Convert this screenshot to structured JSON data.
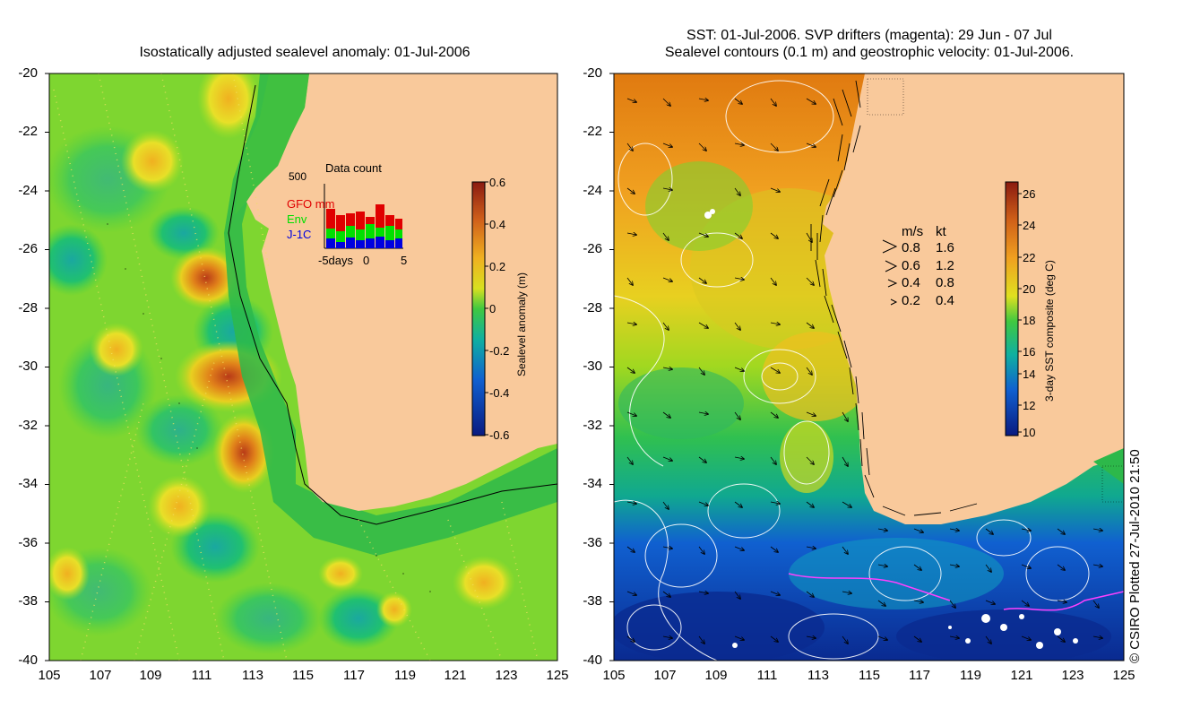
{
  "left_panel": {
    "title": "Isostatically adjusted sealevel anomaly: 01-Jul-2006",
    "y_ticks": [
      "-20",
      "-22",
      "-24",
      "-26",
      "-28",
      "-30",
      "-32",
      "-34",
      "-36",
      "-38",
      "-40"
    ],
    "x_ticks": [
      "105",
      "107",
      "109",
      "111",
      "113",
      "115",
      "117",
      "119",
      "121",
      "123",
      "125"
    ],
    "colorbar": {
      "label": "Sealevel anomaly (m)",
      "ticks": [
        "0.6",
        "0.4",
        "0.2",
        "0",
        "-0.2",
        "-0.4",
        "-0.6"
      ]
    },
    "data_count": {
      "title": "Data count",
      "scale_label": "500",
      "series": [
        {
          "name": "GFO mm",
          "color": "#e00000"
        },
        {
          "name": "Env",
          "color": "#00e000"
        },
        {
          "name": "J-1C",
          "color": "#0000e0"
        }
      ],
      "x_labels": [
        "-5days",
        "0",
        "5"
      ]
    }
  },
  "right_panel": {
    "title_line1": "SST: 01-Jul-2006. SVP drifters (magenta): 29 Jun - 07 Jul",
    "title_line2": "Sealevel contours (0.1 m) and geostrophic velocity: 01-Jul-2006.",
    "y_ticks": [
      "-20",
      "-22",
      "-24",
      "-26",
      "-28",
      "-30",
      "-32",
      "-34",
      "-36",
      "-38",
      "-40"
    ],
    "x_ticks": [
      "105",
      "107",
      "109",
      "111",
      "113",
      "115",
      "117",
      "119",
      "121",
      "123",
      "125"
    ],
    "colorbar": {
      "label": "3-day SST composite (deg C)",
      "ticks": [
        "26",
        "24",
        "22",
        "20",
        "18",
        "16",
        "14",
        "12",
        "10"
      ]
    },
    "velocity_legend": {
      "header_ms": "m/s",
      "header_kt": "kt",
      "rows": [
        {
          "ms": "0.8",
          "kt": "1.6"
        },
        {
          "ms": "0.6",
          "kt": "1.2"
        },
        {
          "ms": "0.4",
          "kt": "0.8"
        },
        {
          "ms": "0.2",
          "kt": "0.4"
        }
      ]
    }
  },
  "credit": "© CSIRO Plotted 27-Jul-2010 21:50",
  "colors": {
    "land": "#f9c99b",
    "ocean_green": "#2fc84a",
    "anomaly_high": "#c8401a",
    "sst_warm": "#e8940f",
    "sst_cold": "#0a3ab0"
  }
}
